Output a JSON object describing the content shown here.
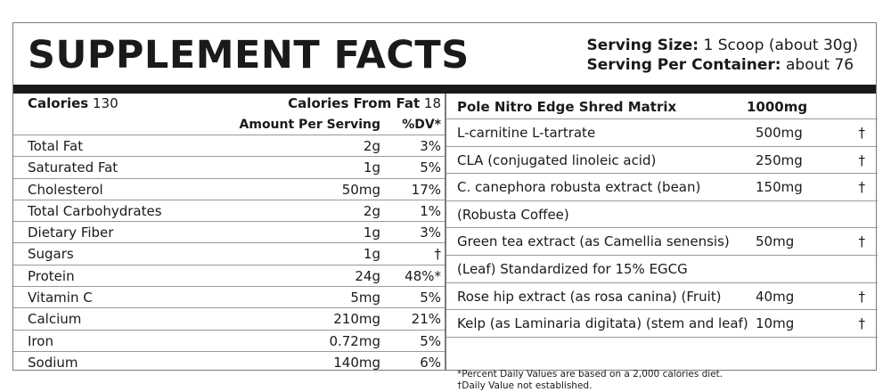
{
  "title": "SUPPLEMENT FACTS",
  "serving": {
    "size_label": "Serving Size:",
    "size_value": "1 Scoop (about 30g)",
    "container_label": "Serving Per Container:",
    "container_value": "about 76"
  },
  "calories": {
    "label": "Calories",
    "value": "130",
    "from_fat_label": "Calories From Fat",
    "from_fat_value": "18"
  },
  "headers": {
    "amount": "Amount Per Serving",
    "dv": "%DV*"
  },
  "nutrients": [
    {
      "name": "Total Fat",
      "amount": "2g",
      "dv": "3%"
    },
    {
      "name": "Saturated Fat",
      "amount": "1g",
      "dv": "5%"
    },
    {
      "name": "Cholesterol",
      "amount": "50mg",
      "dv": "17%"
    },
    {
      "name": "Total Carbohydrates",
      "amount": "2g",
      "dv": "1%"
    },
    {
      "name": "Dietary Fiber",
      "amount": "1g",
      "dv": "3%"
    },
    {
      "name": "Sugars",
      "amount": "1g",
      "dv": "†"
    },
    {
      "name": "Protein",
      "amount": "24g",
      "dv": "48%*"
    },
    {
      "name": "Vitamin C",
      "amount": "5mg",
      "dv": "5%"
    },
    {
      "name": "Calcium",
      "amount": "210mg",
      "dv": "21%"
    },
    {
      "name": "Iron",
      "amount": "0.72mg",
      "dv": "5%"
    },
    {
      "name": "Sodium",
      "amount": "140mg",
      "dv": "6%"
    }
  ],
  "blend": {
    "name": "Pole Nitro Edge Shred Matrix",
    "amount": "1000mg"
  },
  "ingredients": [
    {
      "name": "L-carnitine L-tartrate",
      "amount": "500mg",
      "dv": "†"
    },
    {
      "name": "CLA (conjugated linoleic acid)",
      "amount": "250mg",
      "dv": "†"
    },
    {
      "name": "C. canephora robusta extract (bean)",
      "amount": "150mg",
      "dv": "†"
    },
    {
      "name": "(Robusta Coffee)",
      "amount": "",
      "dv": ""
    },
    {
      "name": "Green tea extract (as Camellia senensis)",
      "amount": "50mg",
      "dv": "†"
    },
    {
      "name": "(Leaf) Standardized for 15% EGCG",
      "amount": "",
      "dv": ""
    },
    {
      "name": "Rose hip extract (as rosa canina) (Fruit)",
      "amount": "40mg",
      "dv": "†"
    },
    {
      "name": "Kelp (as Laminaria digitata) (stem and leaf)",
      "amount": "10mg",
      "dv": "†"
    }
  ],
  "footnotes": {
    "percent": "*Percent Daily Values are based on a 2,000 calories diet.",
    "dagger": "†Daily Value not established."
  }
}
